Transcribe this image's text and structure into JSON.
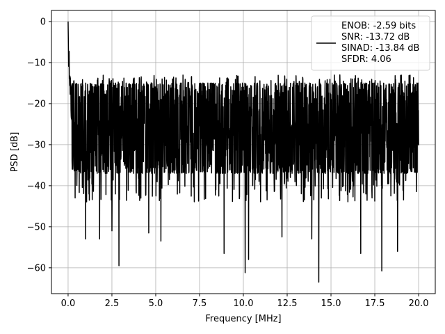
{
  "chart_data": {
    "type": "line",
    "xlabel": "Frequency [MHz]",
    "ylabel": "PSD [dB]",
    "xlim": [
      -0.95,
      20.95
    ],
    "ylim": [
      -66.3,
      2.7
    ],
    "x_ticks": [
      0.0,
      2.5,
      5.0,
      7.5,
      10.0,
      12.5,
      15.0,
      17.5,
      20.0
    ],
    "x_tick_labels": [
      "0.0",
      "2.5",
      "5.0",
      "7.5",
      "10.0",
      "12.5",
      "15.0",
      "17.5",
      "20.0"
    ],
    "y_ticks": [
      0,
      -10,
      -20,
      -30,
      -40,
      -50,
      -60
    ],
    "y_tick_labels": [
      "0",
      "−10",
      "−20",
      "−30",
      "−40",
      "−50",
      "−60"
    ],
    "grid": true,
    "legend_position": "top-right",
    "colors": {
      "line": "#000000",
      "grid": "#b0b0b0"
    },
    "series": [
      {
        "name": "ENOB: -2.59 bits\nSNR: -13.72 dB\nSINAD: -13.84 dB\nSFDR: 4.06",
        "freq_range_mhz": [
          0,
          20
        ],
        "num_points": 2048,
        "peak_db": 0,
        "noise_band_db": [
          -37,
          -15
        ],
        "low_freq_rolloff": [
          [
            0.0,
            0.0
          ],
          [
            0.05,
            -5
          ],
          [
            0.1,
            -10
          ],
          [
            0.2,
            -18
          ]
        ],
        "notable_dips": [
          [
            0.4,
            -43
          ],
          [
            1.0,
            -53
          ],
          [
            1.8,
            -53
          ],
          [
            2.5,
            -51
          ],
          [
            2.9,
            -59.5
          ],
          [
            4.6,
            -51.5
          ],
          [
            5.3,
            -53.5
          ],
          [
            8.9,
            -56.5
          ],
          [
            10.1,
            -61.2
          ],
          [
            10.3,
            -58
          ],
          [
            12.2,
            -52.5
          ],
          [
            13.9,
            -53
          ],
          [
            14.3,
            -63.5
          ],
          [
            16.7,
            -56.5
          ],
          [
            17.9,
            -60.8
          ],
          [
            18.8,
            -56
          ]
        ]
      }
    ]
  }
}
